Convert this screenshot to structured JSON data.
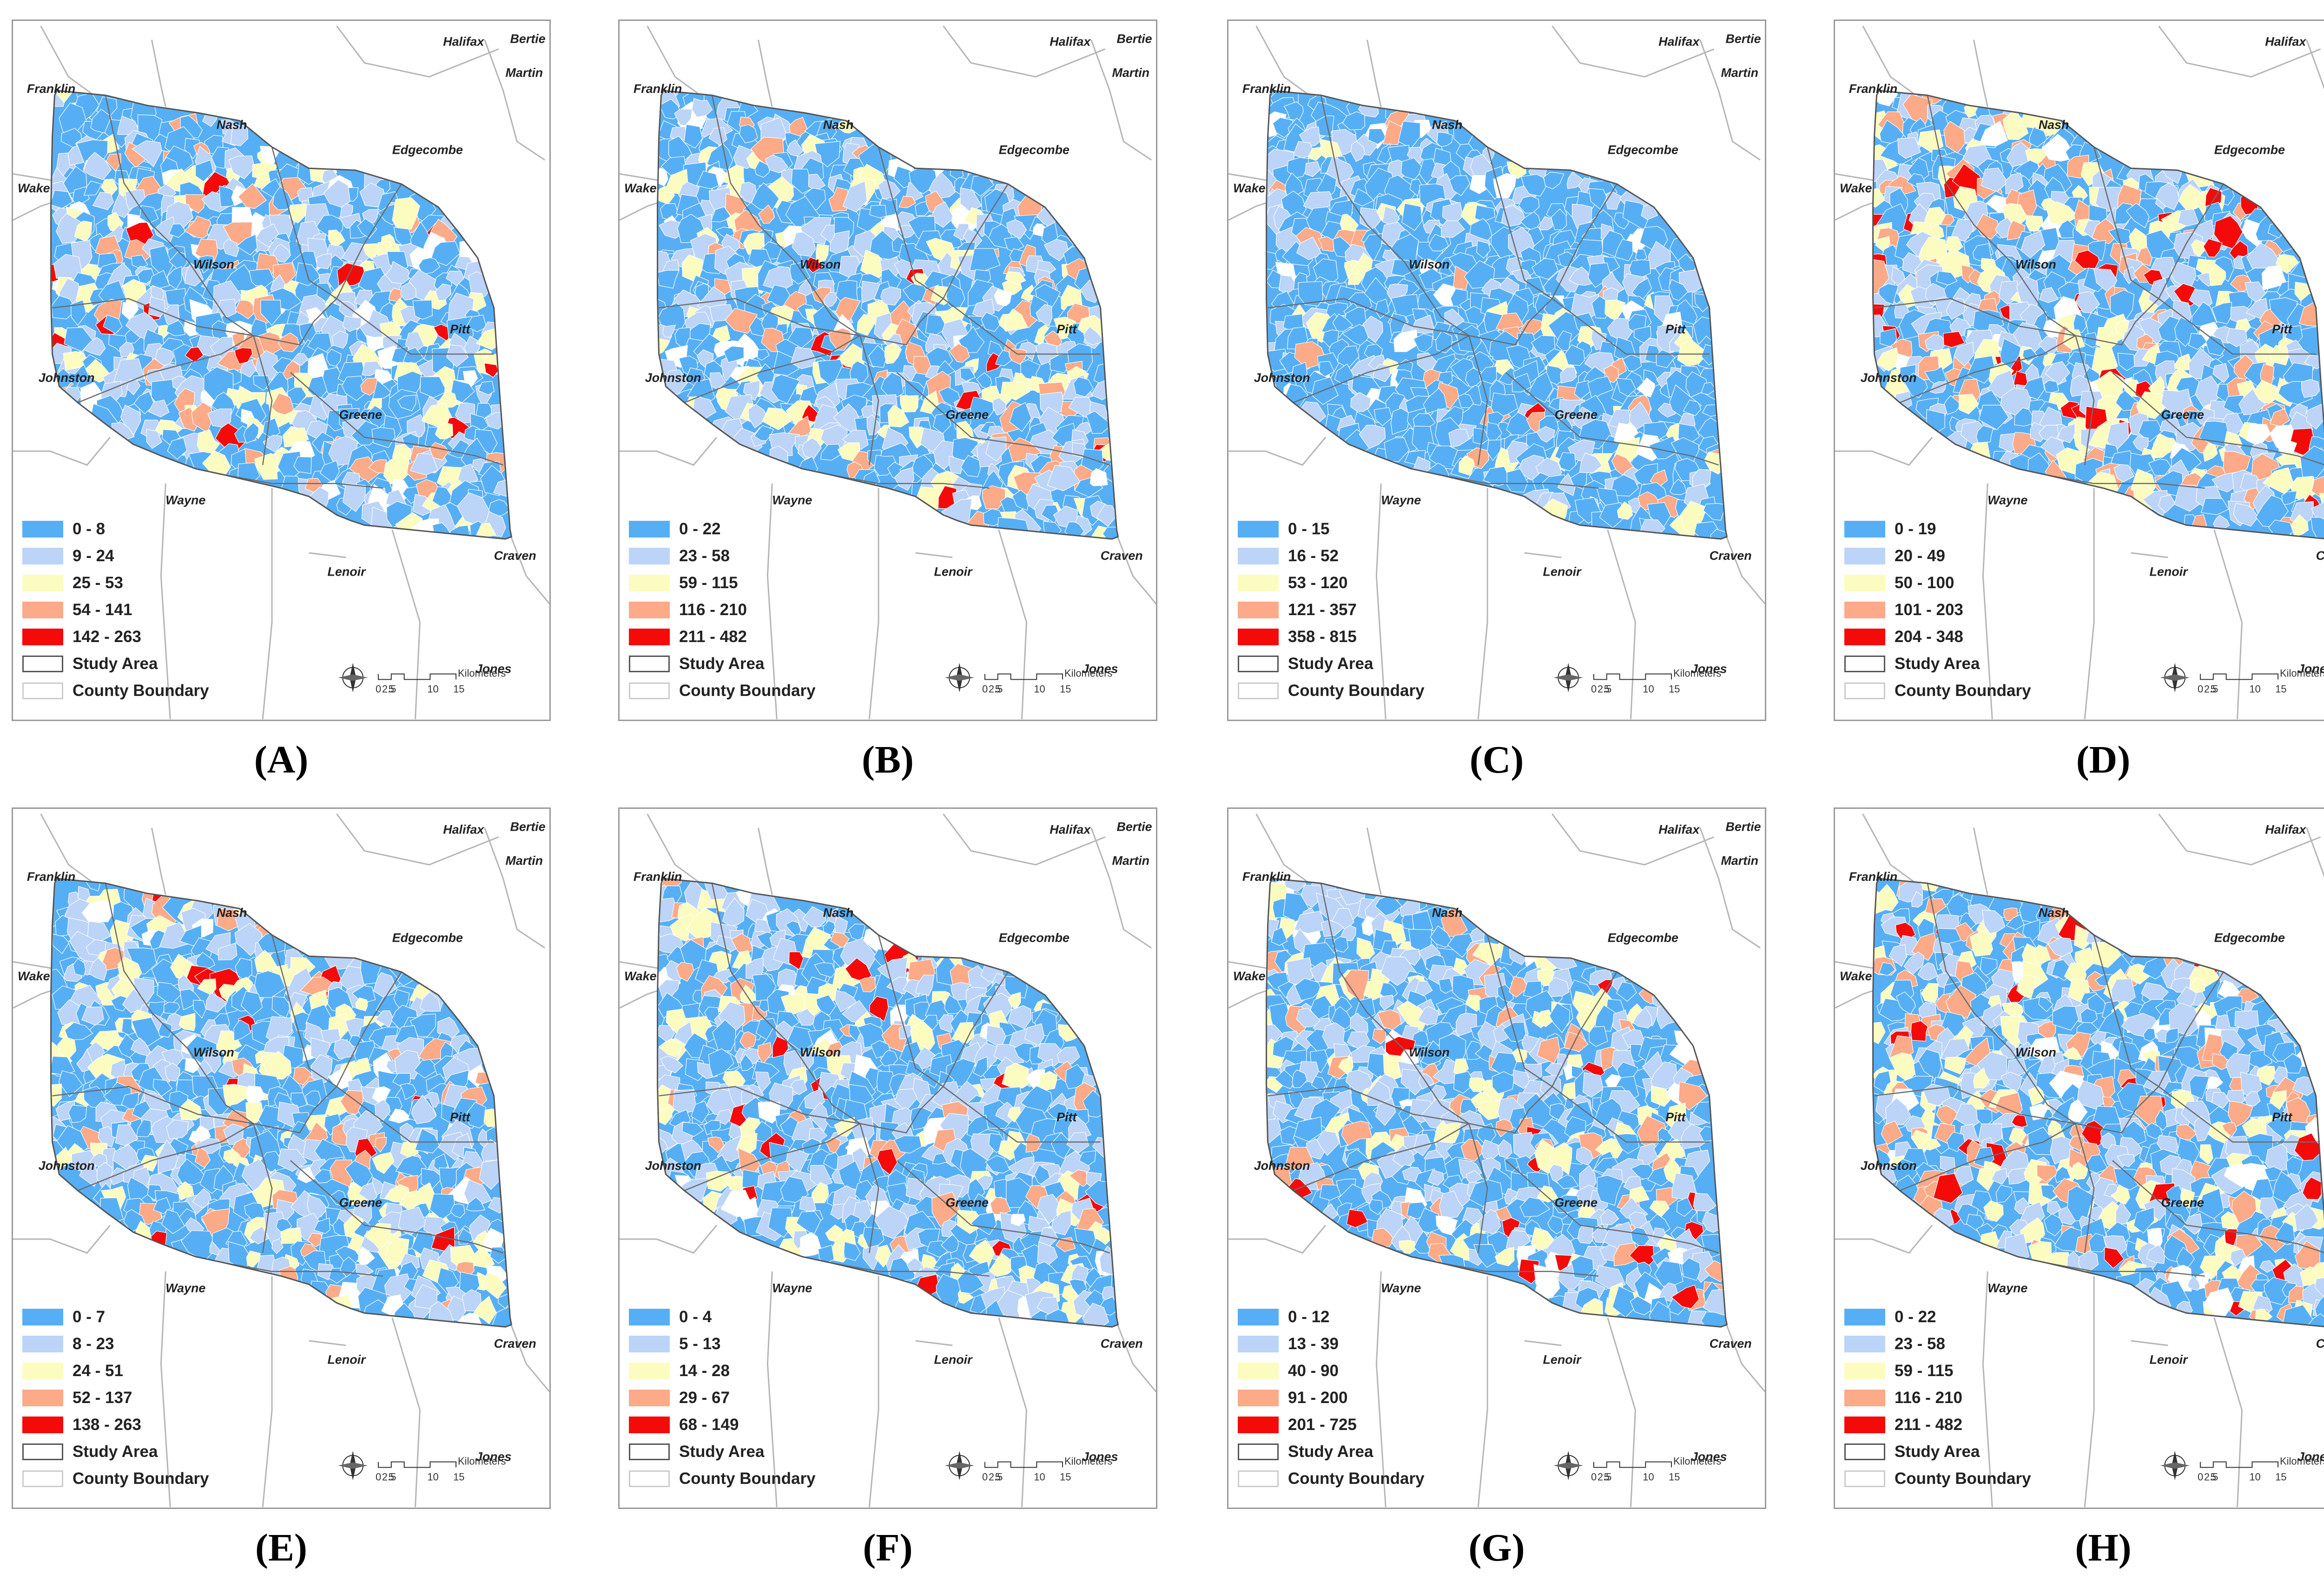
{
  "colors": {
    "class1": "#56aff5",
    "class2": "#bcd4f7",
    "class3": "#fcfcc0",
    "class4": "#fcaa88",
    "class5": "#f50a0a",
    "boundary": "#555555",
    "county_line": "#b5b5b5"
  },
  "common": {
    "county_labels": [
      "Halifax",
      "Bertie",
      "Martin",
      "Franklin",
      "Nash",
      "Edgecombe",
      "Wake",
      "Wilson",
      "Pitt",
      "Johnston",
      "Greene",
      "Wayne",
      "Craven",
      "Lenoir",
      "Jones"
    ],
    "study_area_label": "Study Area",
    "county_boundary_label": "County Boundary",
    "scale": {
      "ticks": [
        "0",
        "2.5",
        "5",
        "10",
        "15"
      ],
      "unit": "Kilometers",
      "icon": "compass-rose-icon"
    }
  },
  "panels": [
    {
      "label": "(A)",
      "classes": [
        "0 - 8",
        "9 - 24",
        "25 - 53",
        "54 - 141",
        "142 - 263"
      ]
    },
    {
      "label": "(B)",
      "classes": [
        "0 - 22",
        "23 - 58",
        "59 - 115",
        "116 - 210",
        "211 - 482"
      ]
    },
    {
      "label": "(C)",
      "classes": [
        "0 - 15",
        "16 - 52",
        "53 - 120",
        "121 - 357",
        "358 - 815"
      ]
    },
    {
      "label": "(D)",
      "classes": [
        "0 - 19",
        "20 - 49",
        "50 - 100",
        "101 - 203",
        "204 - 348"
      ]
    },
    {
      "label": "(E)",
      "classes": [
        "0 - 7",
        "8 - 23",
        "24 - 51",
        "52 - 137",
        "138 - 263"
      ]
    },
    {
      "label": "(F)",
      "classes": [
        "0 - 4",
        "5 - 13",
        "14 - 28",
        "29 - 67",
        "68 - 149"
      ]
    },
    {
      "label": "(G)",
      "classes": [
        "0 - 12",
        "13 - 39",
        "40 - 90",
        "91 - 200",
        "201 - 725"
      ]
    },
    {
      "label": "(H)",
      "classes": [
        "0 - 22",
        "23 - 58",
        "59 - 115",
        "116 - 210",
        "211 - 482"
      ]
    }
  ]
}
